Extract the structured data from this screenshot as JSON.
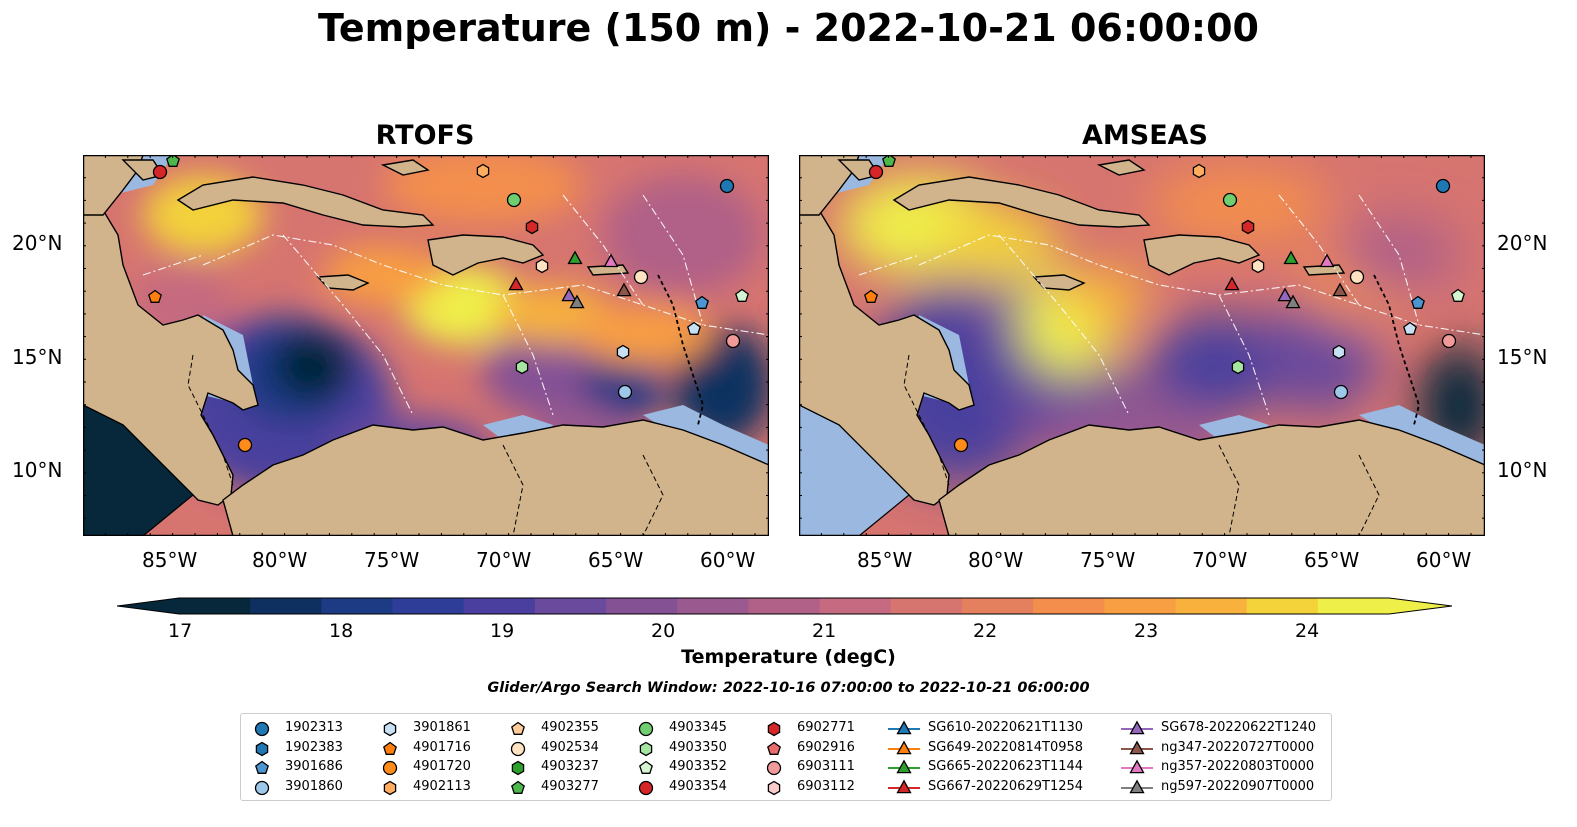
{
  "title": "Temperature (150 m) - 2022-10-21 06:00:00",
  "panels": [
    {
      "title": "RTOFS",
      "palette": "rtofs"
    },
    {
      "title": "AMSEAS",
      "palette": "amseas"
    }
  ],
  "lat_labels": [
    "20°N",
    "15°N",
    "10°N"
  ],
  "lon_labels": [
    "85°W",
    "80°W",
    "75°W",
    "70°W",
    "65°W",
    "60°W"
  ],
  "colorbar": {
    "label": "Temperature (degC)",
    "ticks": [
      "17",
      "18",
      "19",
      "20",
      "21",
      "22",
      "23",
      "24"
    ],
    "colors": [
      "#06283a",
      "#0e3060",
      "#1d3a85",
      "#2e3e98",
      "#4a3f9e",
      "#6a4a9c",
      "#845195",
      "#9a5a8f",
      "#b16187",
      "#c56a80",
      "#d67470",
      "#e4805e",
      "#f38e4d",
      "#f89e43",
      "#f7b13c",
      "#f3d23a",
      "#efef4a"
    ]
  },
  "search_window": "Glider/Argo Search Window: 2022-10-16 07:00:00 to 2022-10-21 06:00:00",
  "legend": [
    {
      "label": "1902313",
      "marker": "circle",
      "color": "#1f77b4"
    },
    {
      "label": "1902383",
      "marker": "hexagon",
      "color": "#1f77b4"
    },
    {
      "label": "3901686",
      "marker": "pentagon",
      "color": "#4b95d0"
    },
    {
      "label": "3901860",
      "marker": "circle",
      "color": "#9ec8ea"
    },
    {
      "label": "3901861",
      "marker": "hexagon",
      "color": "#c7e0f4"
    },
    {
      "label": "4901716",
      "marker": "pentagon",
      "color": "#ff7f0e"
    },
    {
      "label": "4901720",
      "marker": "circle",
      "color": "#ff8c1a"
    },
    {
      "label": "4902113",
      "marker": "hexagon",
      "color": "#ffae60"
    },
    {
      "label": "4902355",
      "marker": "pentagon",
      "color": "#ffcc99"
    },
    {
      "label": "4902534",
      "marker": "circle",
      "color": "#ffe2c2"
    },
    {
      "label": "4903237",
      "marker": "hexagon",
      "color": "#2ca02c"
    },
    {
      "label": "4903277",
      "marker": "pentagon",
      "color": "#4cb84c"
    },
    {
      "label": "4903345",
      "marker": "circle",
      "color": "#6fcf6f"
    },
    {
      "label": "4903350",
      "marker": "hexagon",
      "color": "#a7e6a0"
    },
    {
      "label": "4903352",
      "marker": "pentagon",
      "color": "#d4f5cf"
    },
    {
      "label": "4903354",
      "marker": "circle",
      "color": "#d62728"
    },
    {
      "label": "6902771",
      "marker": "hexagon",
      "color": "#d62728"
    },
    {
      "label": "6902916",
      "marker": "pentagon",
      "color": "#ea6b6b"
    },
    {
      "label": "6903111",
      "marker": "circle",
      "color": "#f29a9a"
    },
    {
      "label": "6903112",
      "marker": "hexagon",
      "color": "#fbcaca"
    },
    {
      "label": "SG610-20220621T1130",
      "marker": "triangle",
      "color": "#1f77b4"
    },
    {
      "label": "SG649-20220814T0958",
      "marker": "triangle",
      "color": "#ff7f0e"
    },
    {
      "label": "SG665-20220623T1144",
      "marker": "triangle",
      "color": "#2ca02c"
    },
    {
      "label": "SG667-20220629T1254",
      "marker": "triangle",
      "color": "#d62728"
    },
    {
      "label": "SG678-20220622T1240",
      "marker": "triangle",
      "color": "#9467bd"
    },
    {
      "label": "ng347-20220727T0000",
      "marker": "triangle",
      "color": "#8c564b"
    },
    {
      "label": "ng357-20220803T0000",
      "marker": "triangle",
      "color": "#e377c2"
    },
    {
      "label": "ng597-20220907T0000",
      "marker": "triangle",
      "color": "#7f7f7f"
    }
  ]
}
